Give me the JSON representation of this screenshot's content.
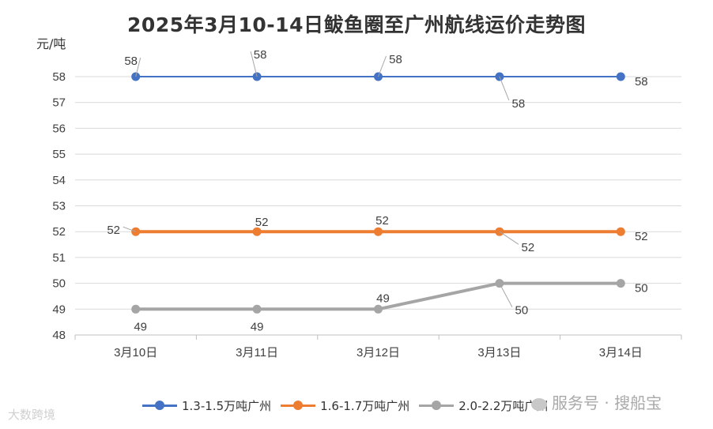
{
  "chart_data": {
    "type": "line",
    "title": "2025年3月10-14日鲅鱼圈至广州航线运价走势图",
    "ylabel": "元/吨",
    "xlabel": "",
    "categories": [
      "3月10日",
      "3月11日",
      "3月12日",
      "3月13日",
      "3月14日"
    ],
    "ylim": [
      48,
      58
    ],
    "yticks": [
      48,
      49,
      50,
      51,
      52,
      53,
      54,
      55,
      56,
      57,
      58
    ],
    "grid": true,
    "legend_position": "bottom",
    "series": [
      {
        "name": "1.3-1.5万吨广州",
        "color": "#4472C4",
        "values": [
          58,
          58,
          58,
          58,
          58
        ]
      },
      {
        "name": "1.6-1.7万吨广州",
        "color": "#ED7D31",
        "values": [
          52,
          52,
          52,
          52,
          52
        ]
      },
      {
        "name": "2.0-2.2万吨广州",
        "color": "#A5A5A5",
        "values": [
          49,
          49,
          49,
          50,
          50
        ]
      }
    ]
  },
  "watermarks": {
    "left": "大数跨境",
    "right": "服务号 · 搜船宝"
  }
}
